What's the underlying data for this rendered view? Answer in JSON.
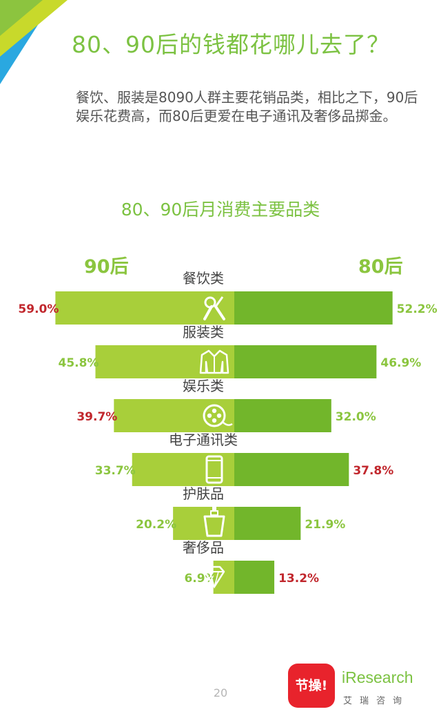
{
  "page": {
    "title": "80、90后的钱都花哪儿去了？",
    "intro": "餐饮、服装是8090人群主要花销品类，相比之下，90后娱乐花费高，而80后更爱在电子通讯及奢侈品掷金。",
    "page_number": "20"
  },
  "logos": {
    "jiecao": "节操!",
    "iresearch": "iResearch",
    "iresearch_cn": "艾瑞咨询"
  },
  "colors": {
    "left_bar": "#a8cf3a",
    "right_bar": "#72b62b",
    "highlight": "#c1272d",
    "normal_label": "#8bc53f",
    "title_green": "#7cc242"
  },
  "chart_data": {
    "type": "bar",
    "title": "80、90后月消费主要品类",
    "left_label": "90后",
    "right_label": "80后",
    "categories": [
      "餐饮类",
      "服装类",
      "娱乐类",
      "电子通讯类",
      "护肤品",
      "奢侈品"
    ],
    "icons": [
      "fork-knife-icon",
      "jacket-icon",
      "film-reel-icon",
      "phone-icon",
      "cosmetics-jar-icon",
      "diamond-icon"
    ],
    "series": [
      {
        "name": "90后",
        "values": [
          59.0,
          45.8,
          39.7,
          33.7,
          20.2,
          6.9
        ],
        "labels": [
          "59.0%",
          "45.8%",
          "39.7%",
          "33.7%",
          "20.2%",
          "6.9%"
        ],
        "highlight": [
          true,
          false,
          true,
          false,
          false,
          false
        ]
      },
      {
        "name": "80后",
        "values": [
          52.2,
          46.9,
          32.0,
          37.8,
          21.9,
          13.2
        ],
        "labels": [
          "52.2%",
          "46.9%",
          "32.0%",
          "37.8%",
          "21.9%",
          "13.2%"
        ],
        "highlight": [
          false,
          false,
          false,
          true,
          false,
          true
        ]
      }
    ],
    "xlim": [
      0,
      60
    ]
  }
}
